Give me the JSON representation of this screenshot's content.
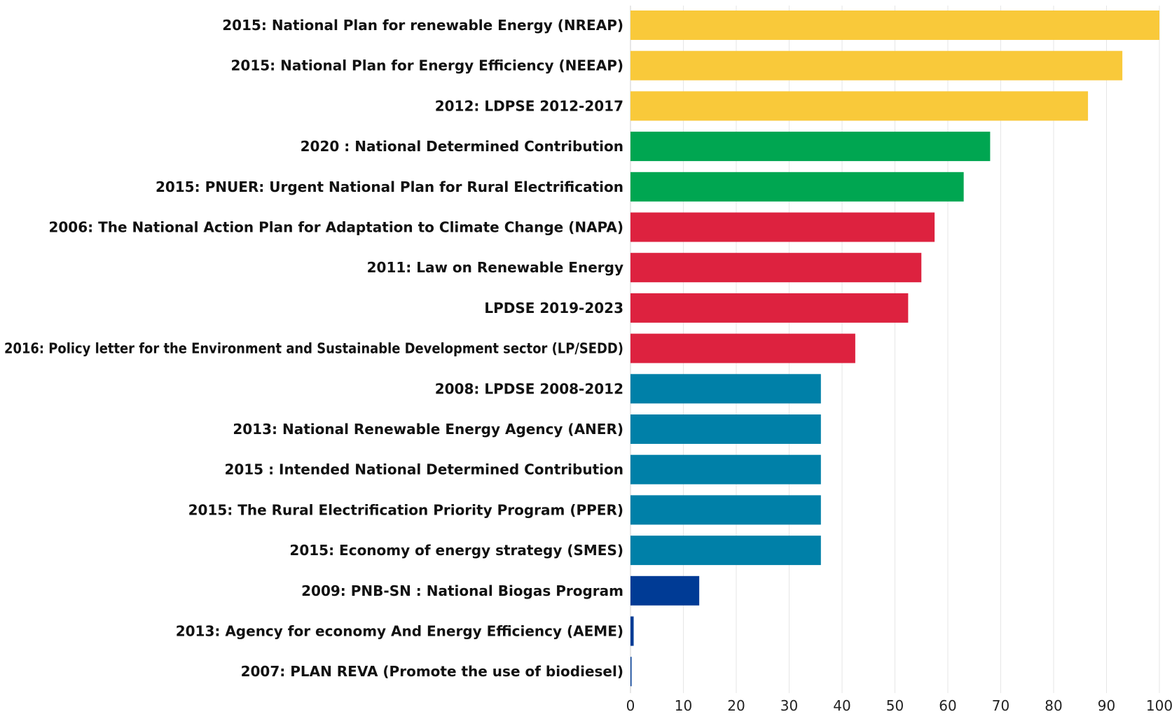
{
  "chart_data": {
    "type": "bar",
    "orientation": "horizontal",
    "title": "",
    "xlabel": "",
    "ylabel": "",
    "xlim": [
      0,
      100
    ],
    "grid": true,
    "x_ticks": [
      "0",
      "10",
      "20",
      "30",
      "40",
      "50",
      "60",
      "70",
      "80",
      "90",
      "100"
    ],
    "categories": [
      "2015: National Plan for renewable Energy (NREAP)",
      "2015: National Plan for Energy Efficiency (NEEAP)",
      "2012: LDPSE 2012-2017",
      "2020 : National Determined Contribution",
      "2015: PNUER: Urgent National Plan for Rural Electrification",
      "2006: The National Action Plan for Adaptation to Climate Change (NAPA)",
      "2011: Law on Renewable Energy",
      "LPDSE 2019-2023",
      "2016: Policy letter for the Environment and Sustainable Development sector (LP/SEDD)",
      "2008: LPDSE 2008-2012",
      "2013: National Renewable Energy Agency (ANER)",
      "2015 : Intended National Determined Contribution",
      "2015:  The Rural Electrification Priority Program (PPER)",
      "2015: Economy of energy strategy (SMES)",
      "2009: PNB-SN : National Biogas Program",
      "2013: Agency for economy And Energy Efficiency (AEME)",
      "2007: PLAN REVA (Promote  the use of biodiesel)"
    ],
    "values": [
      100,
      93,
      86.5,
      68,
      63,
      57.5,
      55,
      52.5,
      42.5,
      36,
      36,
      36,
      36,
      36,
      13,
      0.6,
      0.2
    ],
    "colors": [
      "#F9C93A",
      "#F9C93A",
      "#F9C93A",
      "#00A651",
      "#00A651",
      "#DD223F",
      "#DD223F",
      "#DD223F",
      "#DD223F",
      "#0080A8",
      "#0080A8",
      "#0080A8",
      "#0080A8",
      "#0080A8",
      "#003B95",
      "#003B95",
      "#003B95"
    ]
  }
}
